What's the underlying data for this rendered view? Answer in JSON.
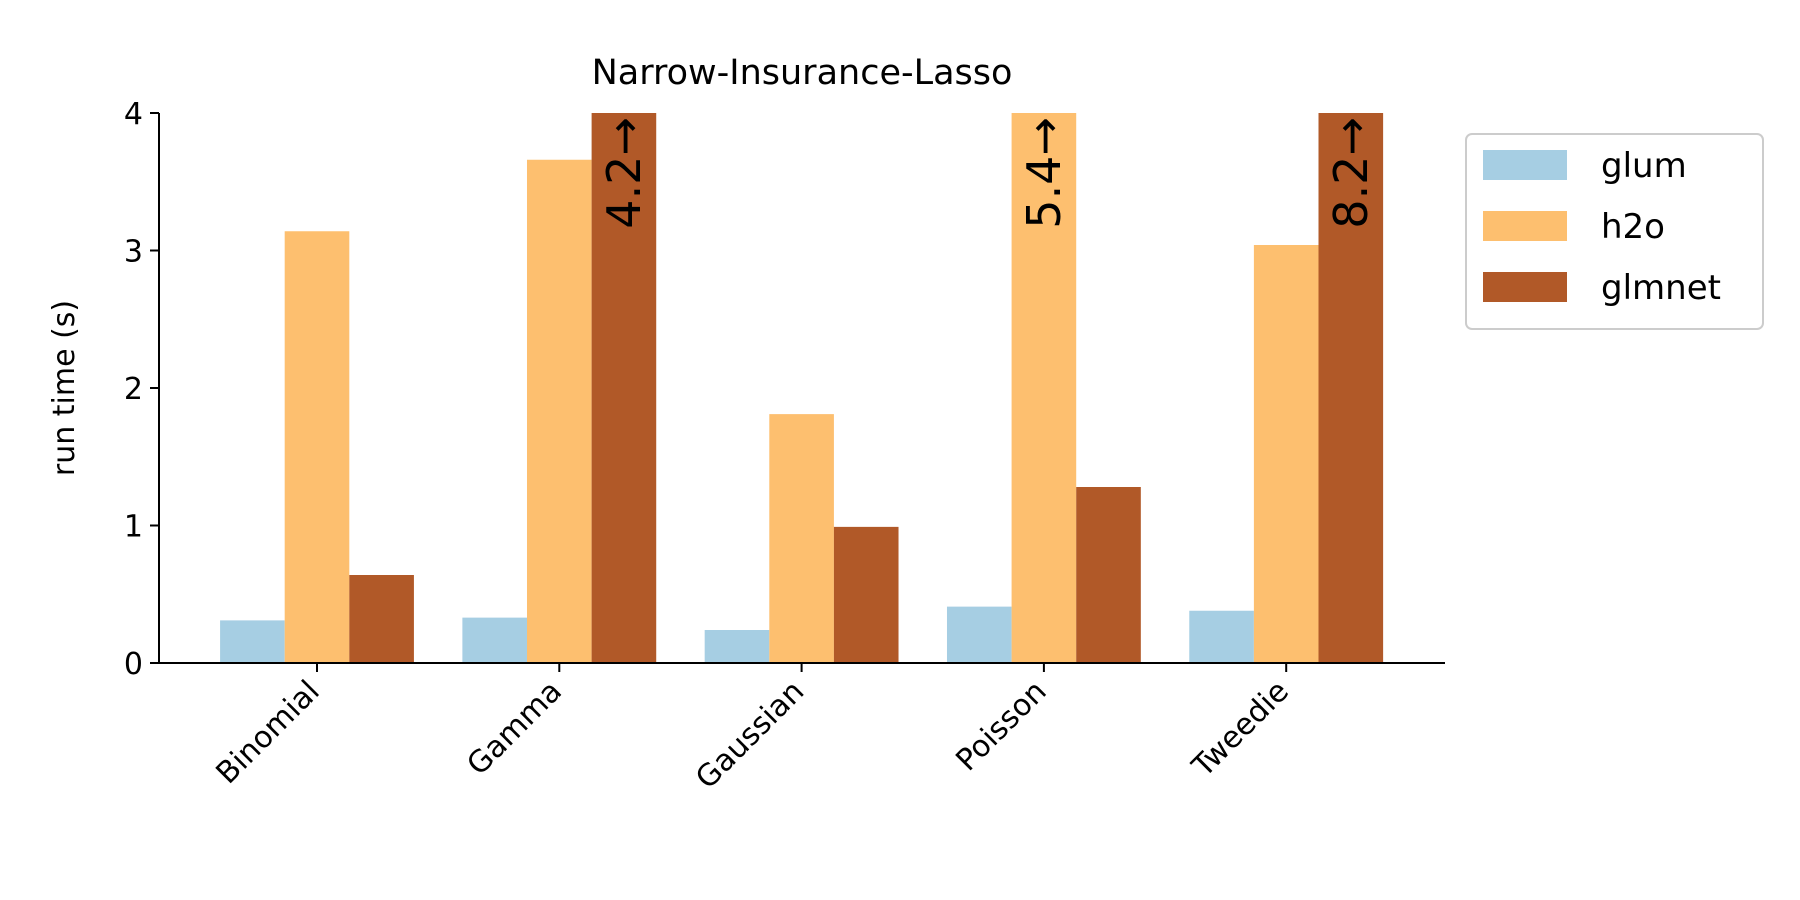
{
  "chart_data": {
    "type": "bar",
    "title": "Narrow-Insurance-Lasso",
    "y_label": "run time (s)",
    "categories": [
      "Binomial",
      "Gamma",
      "Gaussian",
      "Poisson",
      "Tweedie"
    ],
    "series": [
      {
        "name": "glum",
        "color": "#a6cee3",
        "values": [
          0.31,
          0.33,
          0.24,
          0.41,
          0.38
        ]
      },
      {
        "name": "h2o",
        "color": "#fdbf6f",
        "values": [
          3.14,
          3.66,
          1.81,
          5.4,
          3.04
        ],
        "value_labels": [
          null,
          null,
          null,
          "5.4→",
          null
        ]
      },
      {
        "name": "glmnet",
        "color": "#b15928",
        "values": [
          0.64,
          4.2,
          0.99,
          1.28,
          8.2
        ],
        "value_labels": [
          null,
          "4.2→",
          null,
          null,
          "8.2→"
        ]
      }
    ],
    "ylim": [
      0,
      4
    ],
    "yticks": [
      0,
      1,
      2,
      3,
      4
    ],
    "grid": false,
    "legend": "outside right"
  }
}
